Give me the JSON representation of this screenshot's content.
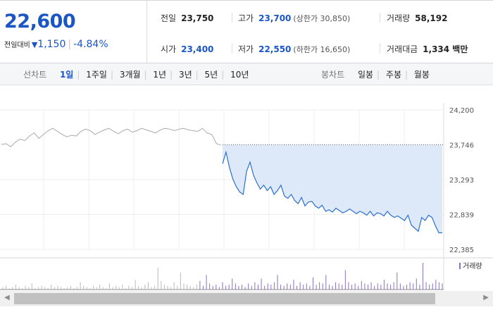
{
  "quote": {
    "price": "22,600",
    "change_label": "전일대비",
    "change_arrow": "▼",
    "change_value": "1,150",
    "change_percent": "-4.84%"
  },
  "stats": {
    "prev_close": {
      "label": "전일",
      "value": "23,750"
    },
    "high": {
      "label": "고가",
      "value": "23,700",
      "sub": "(상한가 30,850)"
    },
    "volume": {
      "label": "거래량",
      "value": "58,192"
    },
    "open": {
      "label": "시가",
      "value": "23,400"
    },
    "low": {
      "label": "저가",
      "value": "22,550",
      "sub": "(하한가 16,650)"
    },
    "trade_amount": {
      "label": "거래대금",
      "value": "1,334 백만"
    }
  },
  "period_bar": {
    "line_chart_label": "선차트",
    "line_periods": [
      "1일",
      "1주일",
      "3개월",
      "1년",
      "3년",
      "5년",
      "10년"
    ],
    "active_period": "1일",
    "candle_chart_label": "봉차트",
    "candle_periods": [
      "일봉",
      "주봉",
      "월봉"
    ]
  },
  "chart_data": {
    "type": "line",
    "y_ticks": [
      "24,200",
      "23,746",
      "23,293",
      "22,839",
      "22,385"
    ],
    "ylim": [
      22385,
      24200
    ],
    "reference_value": 23746,
    "volume_legend": "거래량",
    "series": [
      {
        "values": [
          23750,
          23760,
          23720,
          23780,
          23820,
          23800,
          23860,
          23900,
          23830,
          23880,
          23930,
          23960,
          23920,
          23880,
          23850,
          23870,
          23860,
          23920,
          23950,
          23930,
          23880,
          23910,
          23940,
          23960,
          23920,
          23890,
          23930,
          23950,
          23910,
          23930,
          23960,
          23940,
          23920,
          23900,
          23940,
          23960,
          23950,
          23930,
          23950,
          23960,
          23940,
          23930,
          23920,
          23960,
          23900,
          23880,
          23760,
          23740
        ]
      },
      {
        "values": [
          23500,
          23650,
          23450,
          23300,
          23200,
          23130,
          23100,
          23400,
          23520,
          23350,
          23250,
          23170,
          23220,
          23150,
          23200,
          23100,
          23150,
          23220,
          23080,
          23050,
          23100,
          23020,
          22980,
          23060,
          22950,
          23000,
          23010,
          22950,
          22920,
          22960,
          22880,
          22900,
          22870,
          22920,
          22890,
          22860,
          22880,
          22910,
          22880,
          22850,
          22880,
          22860,
          22830,
          22880,
          22820,
          22860,
          22850,
          22820,
          22880,
          22830,
          22800,
          22820,
          22790,
          22760,
          22830,
          22700,
          22660,
          22620,
          22800,
          22760,
          22830,
          22800,
          22690,
          22600,
          22600
        ]
      }
    ],
    "volumes": [
      2,
      3,
      1,
      2,
      4,
      2,
      1,
      3,
      2,
      5,
      1,
      2,
      3,
      2,
      1,
      4,
      2,
      3,
      2,
      1,
      2,
      3,
      1,
      2,
      6,
      3,
      2,
      1,
      3,
      2,
      4,
      2,
      1,
      5,
      2,
      3,
      2,
      4,
      1,
      3,
      2,
      8,
      3,
      2,
      4,
      6,
      2,
      3,
      18,
      7,
      4,
      3,
      2,
      6,
      3,
      14,
      5,
      4,
      3,
      2,
      4,
      7,
      3,
      12,
      5,
      3,
      4,
      2,
      6,
      3,
      4,
      9,
      5,
      3,
      4,
      2,
      5,
      3,
      6,
      4,
      9,
      3,
      5,
      4,
      6,
      12,
      4,
      3,
      5,
      4,
      8,
      3,
      6,
      4,
      5,
      3,
      10,
      4,
      6,
      5,
      12,
      4,
      3,
      6,
      5,
      4,
      16,
      6,
      4,
      5,
      3,
      7,
      5,
      4,
      6,
      3,
      5,
      4,
      8,
      5,
      4,
      6,
      14,
      5,
      3,
      4,
      6,
      5,
      9,
      4,
      22,
      6,
      4,
      5,
      8,
      6,
      5
    ]
  }
}
